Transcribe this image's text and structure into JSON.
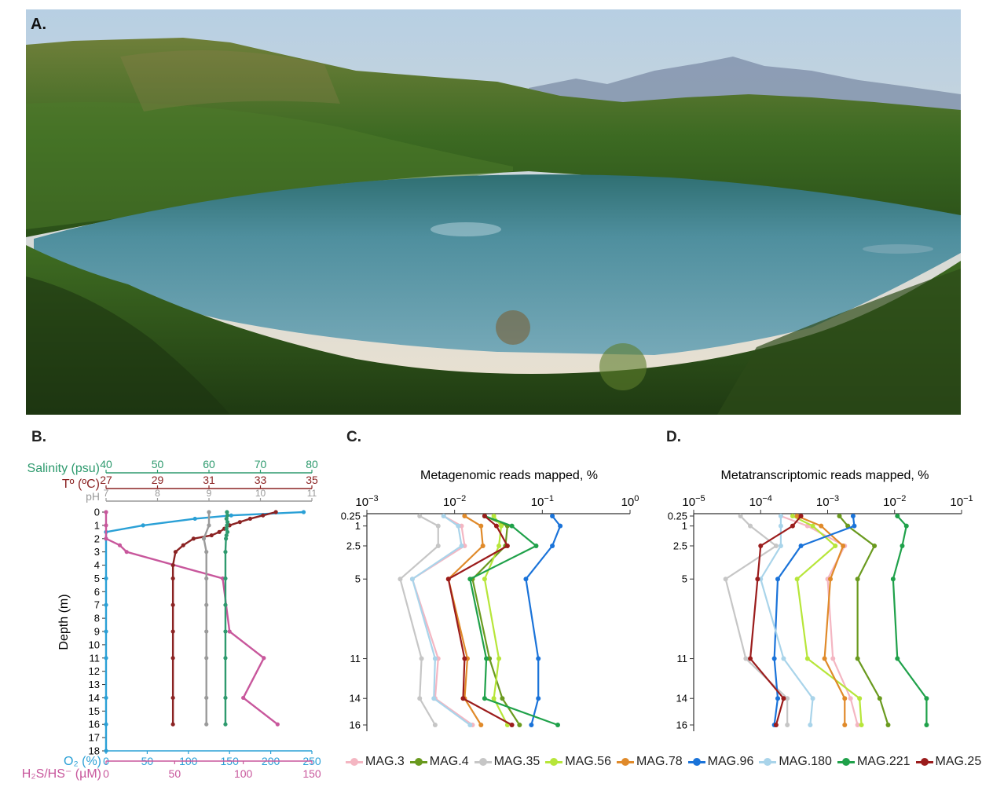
{
  "panel_a": {
    "letter": "A.",
    "colors": {
      "sky_top": "#b7cfe3",
      "sky_bottom": "#e8dcc7",
      "mountain": "#8a9bb3",
      "hills": "#3f6b22",
      "lake_top": "#3d7e86",
      "lake_bottom": "#6fa3b4",
      "foreground": "#2d4e1a"
    }
  },
  "panel_b": {
    "letter": "B.",
    "ylabel": "Depth (m)",
    "ylim": [
      0,
      18
    ],
    "yticks": [
      "0",
      "1",
      "2",
      "3",
      "4",
      "5",
      "6",
      "7",
      "8",
      "9",
      "10",
      "11",
      "12",
      "13",
      "14",
      "15",
      "16",
      "17",
      "18"
    ],
    "axes": {
      "salinity": {
        "label": "Salinity (psu)",
        "ticks": [
          "40",
          "50",
          "60",
          "70",
          "80"
        ],
        "range": [
          40,
          80
        ],
        "color": "#2e9a6e"
      },
      "temperature": {
        "label": "Tº (ºC)",
        "ticks": [
          "27",
          "29",
          "31",
          "33",
          "35"
        ],
        "range": [
          27,
          35
        ],
        "color": "#8b2323"
      },
      "ph": {
        "label": "pH",
        "ticks": [
          "7",
          "8",
          "9",
          "10",
          "11"
        ],
        "range": [
          7,
          11
        ],
        "color": "#9a9a9a"
      },
      "o2": {
        "label": "O₂ (%)",
        "ticks": [
          "0",
          "50",
          "100",
          "150",
          "200",
          "250"
        ],
        "range": [
          0,
          250
        ],
        "color": "#2aa0d6"
      },
      "h2s": {
        "label": "H₂S/HS⁻ (µM)",
        "ticks": [
          "0",
          "50",
          "100",
          "150"
        ],
        "range": [
          0,
          150
        ],
        "color": "#c8579c"
      }
    },
    "chart_data": {
      "type": "line",
      "series": [
        {
          "name": "O2",
          "axis": "o2",
          "color": "#2aa0d6",
          "depth": [
            0,
            0.25,
            0.5,
            1,
            1.5,
            2,
            5,
            7,
            9,
            11,
            14,
            16,
            18
          ],
          "values": [
            240,
            152,
            108,
            45,
            0,
            0,
            0,
            0,
            0,
            0,
            0,
            0,
            0
          ]
        },
        {
          "name": "H2S/HS-",
          "axis": "h2s",
          "color": "#c8579c",
          "depth": [
            0,
            1,
            2,
            2.5,
            3,
            5,
            9,
            11,
            14,
            16
          ],
          "values": [
            0,
            0,
            0,
            10,
            15,
            85,
            90,
            115,
            100,
            125
          ]
        },
        {
          "name": "Temperature",
          "axis": "temperature",
          "color": "#8b2323",
          "depth": [
            0,
            0.25,
            0.5,
            0.75,
            1,
            1.25,
            1.5,
            1.75,
            2,
            2.5,
            3,
            4,
            5,
            7,
            9,
            11,
            14,
            16
          ],
          "values": [
            33.6,
            33.1,
            32.6,
            32.2,
            31.8,
            31.6,
            31.4,
            31.1,
            30.4,
            30.0,
            29.7,
            29.6,
            29.6,
            29.6,
            29.6,
            29.6,
            29.6,
            29.6
          ]
        },
        {
          "name": "pH",
          "axis": "ph",
          "color": "#9a9a9a",
          "depth": [
            0,
            1,
            2,
            3,
            5,
            7,
            9,
            11,
            14,
            16
          ],
          "values": [
            9.0,
            9.0,
            8.9,
            8.95,
            8.95,
            8.95,
            8.95,
            8.95,
            8.95,
            8.95
          ]
        },
        {
          "name": "Salinity",
          "axis": "salinity",
          "color": "#2e9a6e",
          "depth": [
            0,
            0.25,
            0.5,
            0.75,
            1,
            1.25,
            1.5,
            1.75,
            2,
            3,
            5,
            7,
            9,
            11,
            14,
            16
          ],
          "values": [
            63.5,
            63.6,
            63.4,
            63.6,
            63.5,
            63.4,
            63.6,
            63.4,
            63.3,
            63.2,
            63.2,
            63.2,
            63.2,
            63.2,
            63.2,
            63.2
          ]
        }
      ]
    }
  },
  "panel_c": {
    "letter": "C.",
    "title": "Metagenomic reads mapped, %",
    "xtick_base": "10",
    "xticks": [
      {
        "exp": "−3",
        "v": -3
      },
      {
        "exp": "−2",
        "v": -2
      },
      {
        "exp": "−1",
        "v": -1
      },
      {
        "exp": "0",
        "v": 0
      }
    ],
    "xlim": [
      -3,
      0
    ],
    "chart_data": {
      "type": "line",
      "x_scale": "log10",
      "depths": [
        0.25,
        1,
        2.5,
        5,
        11,
        14,
        16
      ],
      "ytick_labels": [
        "0.25",
        "1",
        "2.5",
        "5",
        "11",
        "14",
        "16"
      ],
      "series": [
        {
          "name": "MAG.3",
          "color": "#f4b6c2",
          "values": [
            0.0075,
            0.012,
            0.013,
            0.0033,
            0.0065,
            0.006,
            0.016
          ]
        },
        {
          "name": "MAG.4",
          "color": "#6a9a1f",
          "values": [
            0.022,
            0.04,
            0.038,
            0.016,
            0.025,
            0.035,
            0.055
          ]
        },
        {
          "name": "MAG.35",
          "color": "#c6c6c6",
          "values": [
            0.004,
            0.0065,
            0.0065,
            0.0024,
            0.0042,
            0.004,
            0.006
          ]
        },
        {
          "name": "MAG.56",
          "color": "#b7e63a",
          "values": [
            0.028,
            0.034,
            0.032,
            0.022,
            0.032,
            0.028,
            0.04
          ]
        },
        {
          "name": "MAG.78",
          "color": "#e08a2a",
          "values": [
            0.013,
            0.02,
            0.021,
            0.0085,
            0.014,
            0.013,
            0.02
          ]
        },
        {
          "name": "MAG.96",
          "color": "#1a73d9",
          "values": [
            0.13,
            0.16,
            0.13,
            0.065,
            0.09,
            0.09,
            0.075
          ]
        },
        {
          "name": "MAG.180",
          "color": "#a9d4ea",
          "values": [
            0.0075,
            0.011,
            0.012,
            0.0033,
            0.006,
            0.0058,
            0.015
          ]
        },
        {
          "name": "MAG.221",
          "color": "#1fa14a",
          "values": [
            0.022,
            0.045,
            0.085,
            0.015,
            0.023,
            0.022,
            0.15
          ]
        },
        {
          "name": "MAG.257",
          "color": "#9b1c1c",
          "values": [
            0.022,
            0.03,
            0.04,
            0.0085,
            0.013,
            0.0125,
            0.045
          ]
        }
      ]
    }
  },
  "panel_d": {
    "letter": "D.",
    "title": "Metatranscriptomic reads mapped, %",
    "xtick_base": "10",
    "xticks": [
      {
        "exp": "−5",
        "v": -5
      },
      {
        "exp": "−4",
        "v": -4
      },
      {
        "exp": "−3",
        "v": -3
      },
      {
        "exp": "−2",
        "v": -2
      },
      {
        "exp": "−1",
        "v": -1
      }
    ],
    "xlim": [
      -5,
      -1
    ],
    "chart_data": {
      "type": "line",
      "x_scale": "log10",
      "depths": [
        0.25,
        1,
        2.5,
        5,
        11,
        14,
        16
      ],
      "ytick_labels": [
        "0.25",
        "1",
        "2.5",
        "5",
        "11",
        "14",
        "16"
      ],
      "series": [
        {
          "name": "MAG.3",
          "color": "#f4b6c2",
          "values": [
            0.0002,
            0.0005,
            0.0018,
            0.001,
            0.0012,
            0.0022,
            0.0028
          ]
        },
        {
          "name": "MAG.4",
          "color": "#6a9a1f",
          "values": [
            0.0015,
            0.002,
            0.005,
            0.0028,
            0.0028,
            0.006,
            0.008
          ]
        },
        {
          "name": "MAG.35",
          "color": "#c6c6c6",
          "values": [
            5e-05,
            7e-05,
            0.00017,
            3e-05,
            6e-05,
            0.00025,
            0.00025
          ]
        },
        {
          "name": "MAG.56",
          "color": "#b7e63a",
          "values": [
            0.0003,
            0.0006,
            0.0013,
            0.00035,
            0.0005,
            0.003,
            0.0032
          ]
        },
        {
          "name": "MAG.78",
          "color": "#e08a2a",
          "values": [
            0.00035,
            0.0008,
            0.0017,
            0.0011,
            0.0009,
            0.0018,
            0.0018
          ]
        },
        {
          "name": "MAG.96",
          "color": "#1a73d9",
          "values": [
            0.0024,
            0.0025,
            0.0004,
            0.00018,
            0.00016,
            0.00018,
            0.00016
          ]
        },
        {
          "name": "MAG.180",
          "color": "#a9d4ea",
          "values": [
            0.0002,
            0.0002,
            0.0002,
            0.0001,
            0.00022,
            0.0006,
            0.00055
          ]
        },
        {
          "name": "MAG.221",
          "color": "#1fa14a",
          "values": [
            0.011,
            0.015,
            0.013,
            0.0095,
            0.011,
            0.03,
            0.03
          ]
        },
        {
          "name": "MAG.257",
          "color": "#9b1c1c",
          "values": [
            0.0004,
            0.0003,
            0.0001,
            9e-05,
            7e-05,
            0.00022,
            0.00017
          ]
        }
      ]
    }
  },
  "legend": [
    "MAG.3",
    "MAG.4",
    "MAG.35",
    "MAG.56",
    "MAG.78",
    "MAG.96",
    "MAG.180",
    "MAG.221",
    "MAG.257"
  ]
}
